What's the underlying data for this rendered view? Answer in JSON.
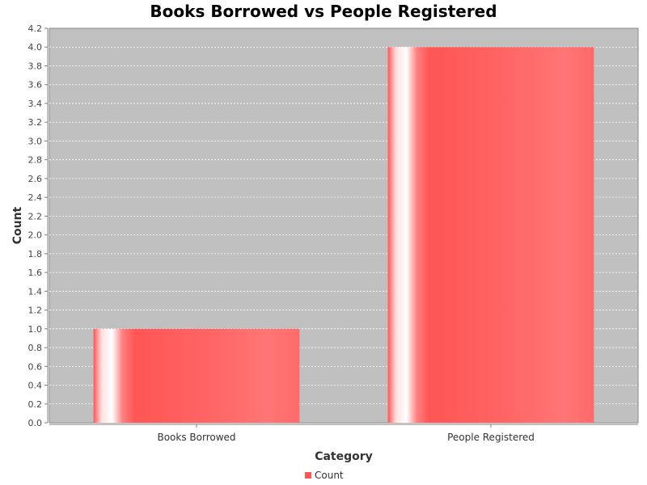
{
  "chart_data": {
    "type": "bar",
    "title": "Books Borrowed vs People Registered",
    "xlabel": "Category",
    "ylabel": "Count",
    "categories": [
      "Books Borrowed",
      "People Registered"
    ],
    "series": [
      {
        "name": "Count",
        "values": [
          1.0,
          4.0
        ],
        "color": "#ff5555"
      }
    ],
    "ylim": [
      0,
      4.2
    ],
    "y_ticks": [
      "0.0",
      "0.2",
      "0.4",
      "0.6",
      "0.8",
      "1.0",
      "1.2",
      "1.4",
      "1.6",
      "1.8",
      "2.0",
      "2.2",
      "2.4",
      "2.6",
      "2.8",
      "3.0",
      "3.2",
      "3.4",
      "3.6",
      "3.8",
      "4.0",
      "4.2"
    ],
    "grid": true,
    "legend_position": "bottom",
    "plot_background": "#c0c0c0",
    "gridline_color": "#ffffff"
  }
}
